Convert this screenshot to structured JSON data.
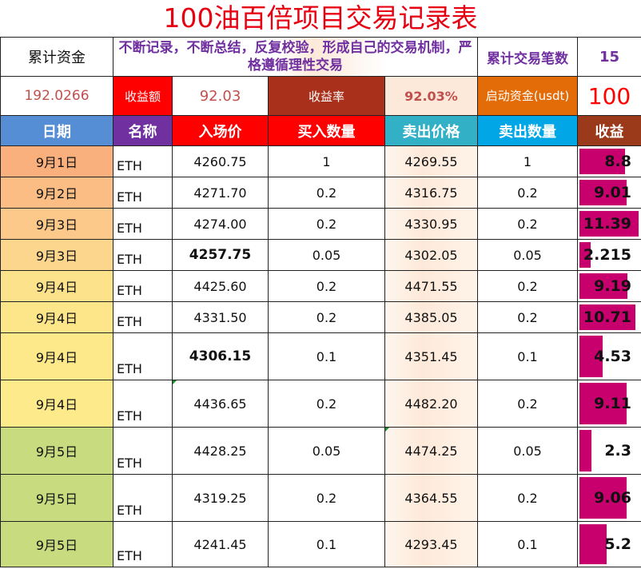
{
  "title": "100油百倍项目交易记录表",
  "summary": {
    "cumulative_funds_label": "累计资金",
    "motto": "不断记录，不断总结，反复校验，形成自己的交易机制，严格遵循理性交易",
    "trade_count_label": "累计交易笔数",
    "trade_count": "15",
    "cumulative_funds": "192.0266",
    "profit_label": "收益额",
    "profit": "92.03",
    "return_rate_label": "收益率",
    "return_rate": "92.03%",
    "start_capital_label": "启动资金(usdt)",
    "start_capital": "100"
  },
  "headers": {
    "date": "日期",
    "name": "名称",
    "entry_price": "入场价",
    "buy_qty": "买入数量",
    "sell_price": "卖出价格",
    "sell_qty": "卖出数量",
    "profit": "收益"
  },
  "colors": {
    "title": "#e60012",
    "bar": "#c8006e",
    "date_orange": "#fab07c",
    "date_lightorange": "#fcc88c",
    "date_yellow": "#fde58a",
    "date_green": "#c9db7f"
  },
  "rows": [
    {
      "date": "9月1日",
      "name": "ETH",
      "entry": "4260.75",
      "buy_qty": "1",
      "sell": "4269.55",
      "sell_qty": "1",
      "profit": "8.8",
      "profit_value": 8.8,
      "date_color": "#fab07c"
    },
    {
      "date": "9月2日",
      "name": "ETH",
      "entry": "4271.70",
      "buy_qty": "0.2",
      "sell": "4316.75",
      "sell_qty": "0.2",
      "profit": "9.01",
      "profit_value": 9.01,
      "date_color": "#fbbd83"
    },
    {
      "date": "9月3日",
      "name": "ETH",
      "entry": "4274.00",
      "buy_qty": "0.2",
      "sell": "4330.95",
      "sell_qty": "0.2",
      "profit": "11.39",
      "profit_value": 11.39,
      "date_color": "#fcc98b"
    },
    {
      "date": "9月3日",
      "name": "ETH",
      "entry": "4257.75",
      "buy_qty": "0.05",
      "sell": "4302.05",
      "sell_qty": "0.05",
      "profit": "2.215",
      "profit_value": 2.215,
      "date_color": "#fcd68d"
    },
    {
      "date": "9月4日",
      "name": "ETH",
      "entry": "4425.60",
      "buy_qty": "0.2",
      "sell": "4471.55",
      "sell_qty": "0.2",
      "profit": "9.19",
      "profit_value": 9.19,
      "date_color": "#fde28c"
    },
    {
      "date": "9月4日",
      "name": "ETH",
      "entry": "4331.50",
      "buy_qty": "0.2",
      "sell": "4385.05",
      "sell_qty": "0.2",
      "profit": "10.71",
      "profit_value": 10.71,
      "date_color": "#fde58a"
    },
    {
      "date": "9月4日",
      "name": "ETH",
      "entry": "4306.15",
      "buy_qty": "0.1",
      "sell": "4351.45",
      "sell_qty": "0.1",
      "profit": "4.53",
      "profit_value": 4.53,
      "date_color": "#fde88a"
    },
    {
      "date": "9月4日",
      "name": "ETH",
      "entry": "4436.65",
      "buy_qty": "0.2",
      "sell": "4482.20",
      "sell_qty": "0.2",
      "profit": "9.11",
      "profit_value": 9.11,
      "date_color": "#fdea8a"
    },
    {
      "date": "9月5日",
      "name": "ETH",
      "entry": "4428.25",
      "buy_qty": "0.05",
      "sell": "4474.25",
      "sell_qty": "0.05",
      "profit": "2.3",
      "profit_value": 2.3,
      "date_color": "#c9db7f"
    },
    {
      "date": "9月5日",
      "name": "ETH",
      "entry": "4319.25",
      "buy_qty": "0.2",
      "sell": "4364.55",
      "sell_qty": "0.2",
      "profit": "9.06",
      "profit_value": 9.06,
      "date_color": "#c9db7f"
    },
    {
      "date": "9月5日",
      "name": "ETH",
      "entry": "4241.45",
      "buy_qty": "0.1",
      "sell": "4293.45",
      "sell_qty": "0.1",
      "profit": "5.2",
      "profit_value": 5.2,
      "date_color": "#c9db7f"
    }
  ]
}
